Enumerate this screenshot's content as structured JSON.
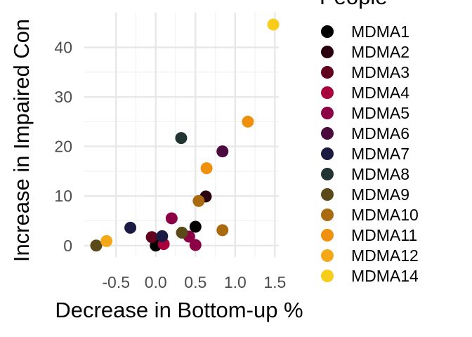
{
  "chart_data": {
    "type": "scatter",
    "xlabel": "Decrease in Bottom-up %",
    "ylabel": "Increase in Impaired Con",
    "legend_title": "People",
    "legend_position": "right",
    "grid": true,
    "xlim": [
      -0.9,
      1.55
    ],
    "ylim": [
      -2.3,
      47
    ],
    "x_ticks": [
      -0.5,
      0.0,
      0.5,
      1.0,
      1.5
    ],
    "x_tick_labels": [
      "-0.5",
      "0.0",
      "0.5",
      "1.0",
      "1.5"
    ],
    "y_ticks": [
      0,
      10,
      20,
      30,
      40
    ],
    "y_tick_labels": [
      "0",
      "10",
      "20",
      "30",
      "40"
    ],
    "series": [
      {
        "name": "MDMA1",
        "color": "#000000",
        "points": [
          [
            0.0,
            0.0
          ],
          [
            0.5,
            3.8
          ]
        ]
      },
      {
        "name": "MDMA2",
        "color": "#2a0010",
        "points": [
          [
            0.63,
            9.9
          ]
        ]
      },
      {
        "name": "MDMA3",
        "color": "#61001f",
        "points": [
          [
            -0.05,
            1.7
          ]
        ]
      },
      {
        "name": "MDMA4",
        "color": "#a8003d",
        "points": [
          [
            0.1,
            0.3
          ]
        ]
      },
      {
        "name": "MDMA5",
        "color": "#8c0046",
        "points": [
          [
            0.2,
            5.5
          ],
          [
            0.42,
            1.8
          ],
          [
            0.5,
            0.1
          ]
        ]
      },
      {
        "name": "MDMA6",
        "color": "#4a0a3e",
        "points": [
          [
            0.84,
            19.0
          ]
        ]
      },
      {
        "name": "MDMA7",
        "color": "#1b1a42",
        "points": [
          [
            -0.32,
            3.6
          ],
          [
            0.08,
            1.9
          ]
        ]
      },
      {
        "name": "MDMA8",
        "color": "#223333",
        "points": [
          [
            0.32,
            21.7
          ]
        ]
      },
      {
        "name": "MDMA9",
        "color": "#5a4a19",
        "points": [
          [
            -0.75,
            0.0
          ],
          [
            0.33,
            2.6
          ]
        ]
      },
      {
        "name": "MDMA10",
        "color": "#aa6a0f",
        "points": [
          [
            0.54,
            9.0
          ],
          [
            0.84,
            3.1
          ]
        ]
      },
      {
        "name": "MDMA11",
        "color": "#f0900f",
        "points": [
          [
            0.64,
            15.6
          ],
          [
            1.16,
            25.0
          ]
        ]
      },
      {
        "name": "MDMA12",
        "color": "#f4a818",
        "points": [
          [
            -0.62,
            0.9
          ]
        ]
      },
      {
        "name": "MDMA14",
        "color": "#f7cc1a",
        "points": [
          [
            1.48,
            44.6
          ]
        ]
      }
    ]
  }
}
